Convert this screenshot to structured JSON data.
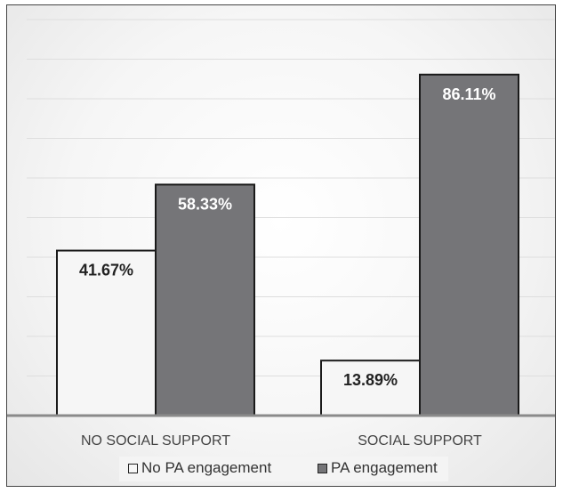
{
  "chart_data": {
    "type": "bar",
    "categories": [
      "NO SOCIAL SUPPORT",
      "SOCIAL SUPPORT"
    ],
    "series": [
      {
        "name": "No PA engagement",
        "values": [
          41.67,
          13.89
        ],
        "labels": [
          "41.67%",
          "13.89%"
        ],
        "color": "#f6f6f6"
      },
      {
        "name": "PA engagement",
        "values": [
          58.33,
          86.11
        ],
        "labels": [
          "58.33%",
          "86.11%"
        ],
        "color": "#757578"
      }
    ],
    "ylim": [
      0,
      100
    ],
    "gridlines": true,
    "legend_position": "bottom",
    "xlabel": "",
    "ylabel": "",
    "title": ""
  }
}
